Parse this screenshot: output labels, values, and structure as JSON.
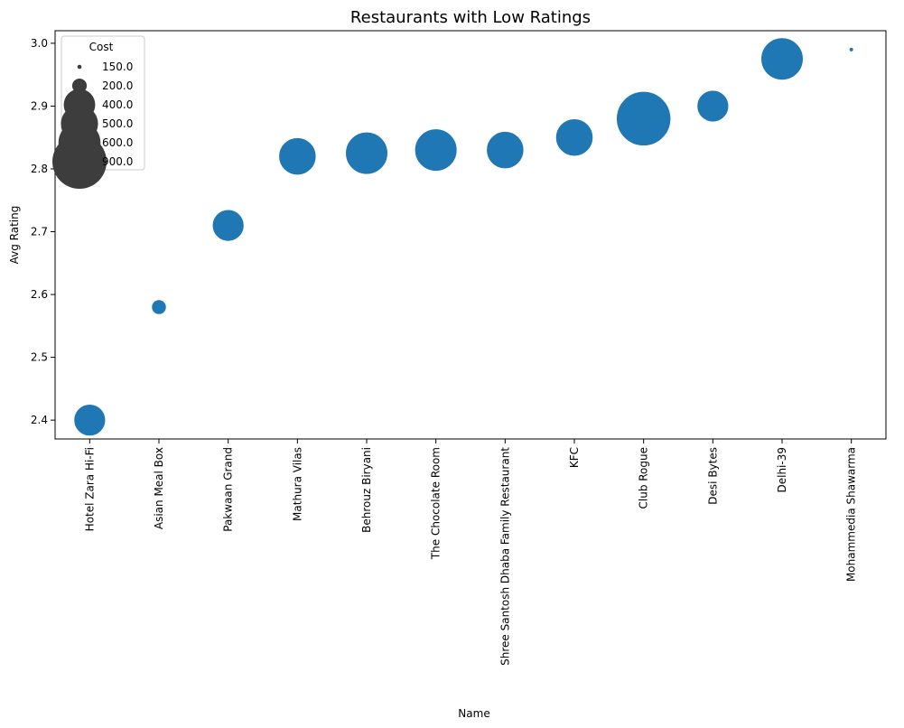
{
  "chart_data": {
    "type": "scatter",
    "title": "Restaurants with Low Ratings",
    "xlabel": "Name",
    "ylabel": "Avg Rating",
    "ylim": [
      2.37,
      3.02
    ],
    "yticks": [
      2.4,
      2.5,
      2.6,
      2.7,
      2.8,
      2.9,
      3.0
    ],
    "ytick_labels": [
      "2.4",
      "2.5",
      "2.6",
      "2.7",
      "2.8",
      "2.9",
      "3.0"
    ],
    "categories": [
      "Hotel Zara Hi-Fi",
      "Asian Meal Box",
      "Pakwaan Grand",
      "Mathura Vilas",
      "Behrouz Biryani",
      "The Chocolate Room",
      "Shree Santosh Dhaba Family Restaurant",
      "KFC",
      "Club Rogue",
      "Desi Bytes",
      "Delhi-39",
      "Mohammedia Shawarma"
    ],
    "values": [
      2.4,
      2.58,
      2.71,
      2.82,
      2.825,
      2.83,
      2.83,
      2.85,
      2.88,
      2.9,
      2.975,
      2.99
    ],
    "sizes": [
      400,
      200,
      400,
      500,
      600,
      600,
      500,
      500,
      900,
      400,
      600,
      150
    ],
    "size_range": [
      150,
      900
    ],
    "legend": {
      "title": "Cost",
      "entries": [
        "150.0",
        "200.0",
        "400.0",
        "500.0",
        "600.0",
        "900.0"
      ],
      "entry_values": [
        150,
        200,
        400,
        500,
        600,
        900
      ],
      "placement": "top-left"
    },
    "grid": false,
    "point_color": "#1f77b4",
    "legend_color": "#3d3d3d"
  }
}
